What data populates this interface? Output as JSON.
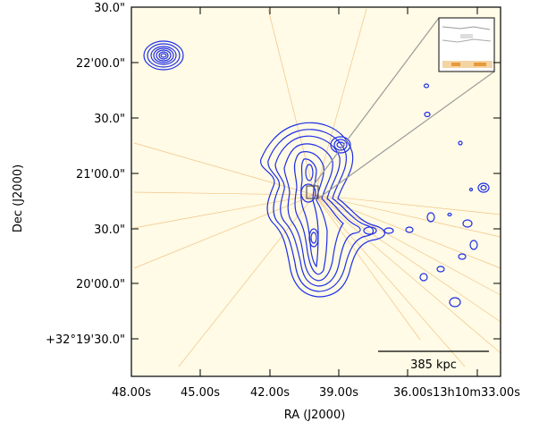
{
  "figure": {
    "y_axis_label": "Dec (J2000)",
    "x_axis_label": "RA (J2000)",
    "y_tick_labels": [
      "30.0\"",
      "22'00.0\"",
      "30.0\"",
      "21'00.0\"",
      "30.0\"",
      "20'00.0\"",
      "+32°19'30.0\""
    ],
    "x_tick_labels": [
      "48.00s",
      "45.00s",
      "42.00s",
      "39.00s",
      "36.00s13h10m33.00s"
    ],
    "scale_bar_label": "385 kpc",
    "colors": {
      "background": "#fffbe6",
      "contours": "#1f2ee6",
      "streaks": "#e8963a",
      "inset_frame": "#333333",
      "zoom_lines": "#9a9a9a"
    }
  }
}
